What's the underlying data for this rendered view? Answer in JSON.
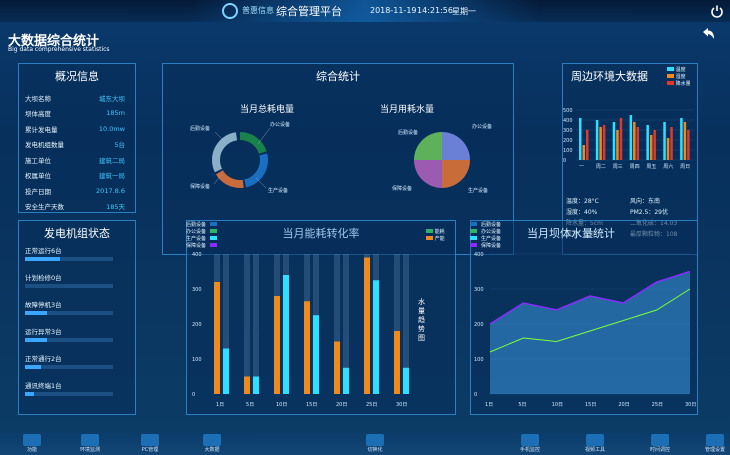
{
  "header": {
    "brand": "普惠信息",
    "platform": "综合管理平台",
    "date": "2018-11-19",
    "time": "14:21:56",
    "weekday": "星期一",
    "power_icon": "power-icon"
  },
  "page": {
    "title": "大数据综合统计",
    "subtitle": "Big data comprehensive statistics",
    "back_icon": "back-arrow-icon"
  },
  "overview": {
    "title": "概况信息",
    "rows": [
      {
        "label": "大坝名称",
        "value": "城东大坝"
      },
      {
        "label": "坝体高度",
        "value": "185m"
      },
      {
        "label": "累计发电量",
        "value": "10.0mw"
      },
      {
        "label": "发电机组数量",
        "value": "5台"
      },
      {
        "label": "施工单位",
        "value": "建筑二局"
      },
      {
        "label": "权属单位",
        "value": "建筑一局"
      },
      {
        "label": "投产日期",
        "value": "2017.8.6"
      },
      {
        "label": "安全生产天数",
        "value": "185天"
      }
    ]
  },
  "generator": {
    "title": "发电机组状态",
    "rows": [
      {
        "label": "正常运行6台",
        "fill": 0.4
      },
      {
        "label": "计划检修0台",
        "fill": 0.0
      },
      {
        "label": "故障停机3台",
        "fill": 0.25
      },
      {
        "label": "运行异常3台",
        "fill": 0.25
      },
      {
        "label": "正常通行2台",
        "fill": 0.18
      },
      {
        "label": "通讯终端1台",
        "fill": 0.1
      }
    ]
  },
  "summary": {
    "title": "综合统计",
    "donut1": {
      "title": "当月总耗电量",
      "labels": [
        "后勤设备",
        "办公设备",
        "保障设备",
        "生产设备"
      ]
    },
    "donut2": {
      "title": "当月用耗水量",
      "labels": [
        "后勤设备",
        "办公设备",
        "保障设备",
        "生产设备"
      ]
    },
    "legend": [
      "后勤设备",
      "办公设备",
      "生产设备",
      "保障设备"
    ]
  },
  "env": {
    "title": "周边环境大数据",
    "legend": [
      "温度",
      "湿度",
      "降水量"
    ],
    "days": [
      "一",
      "周二",
      "周三",
      "周四",
      "周五",
      "周六",
      "周日"
    ],
    "stats": [
      {
        "l": "温度：28°C",
        "r": "风向：东南"
      },
      {
        "l": "湿度：40%",
        "r": "PM2.5：29优"
      },
      {
        "l": "降水量：5cm",
        "r": "二氧化硫：14.03"
      },
      {
        "l": "风速：4米",
        "r": "最厚颗粒物：108"
      }
    ]
  },
  "energy": {
    "title": "当月能耗转化率",
    "legend": [
      "能耗",
      "产能"
    ],
    "side_text": "水量趋势图"
  },
  "dam": {
    "title": "当月坝体水量统计"
  },
  "colors": {
    "accent": "#3ec8ff",
    "orange": "#f08a1c",
    "cyan": "#2de0ff",
    "green": "#7bff3a",
    "purple": "#8a2cff"
  },
  "bottom_nav": [
    "功能",
    "环境监测",
    "PC管理",
    "大数据",
    "切换化",
    "手机监控",
    "视频工具",
    "时间调控",
    "管理设置"
  ],
  "chart_data": [
    {
      "type": "pie",
      "title": "当月总耗电量",
      "labels": [
        "后勤设备",
        "办公设备",
        "保障设备",
        "生产设备"
      ],
      "values": [
        20,
        30,
        25,
        25
      ]
    },
    {
      "type": "pie",
      "title": "当月用耗水量",
      "labels": [
        "后勤设备",
        "办公设备",
        "保障设备",
        "生产设备"
      ],
      "values": [
        25,
        25,
        25,
        25
      ]
    },
    {
      "type": "bar",
      "title": "周边环境大数据",
      "categories": [
        "一",
        "周二",
        "周三",
        "周四",
        "周五",
        "周六",
        "周日"
      ],
      "series": [
        {
          "name": "温度",
          "values": [
            420,
            400,
            380,
            450,
            350,
            380,
            420
          ]
        },
        {
          "name": "湿度",
          "values": [
            150,
            330,
            300,
            380,
            250,
            220,
            380
          ]
        },
        {
          "name": "降水量",
          "values": [
            300,
            350,
            420,
            330,
            300,
            330,
            300
          ]
        }
      ],
      "ylim": [
        0,
        500
      ]
    },
    {
      "type": "bar",
      "title": "当月能耗转化率",
      "categories": [
        "1日",
        "5日",
        "10日",
        "15日",
        "20日",
        "25日",
        "30日"
      ],
      "series": [
        {
          "name": "能耗",
          "values": [
            320,
            50,
            280,
            265,
            150,
            390,
            180
          ]
        },
        {
          "name": "产能",
          "values": [
            130,
            50,
            340,
            225,
            75,
            325,
            75
          ]
        }
      ],
      "ylim": [
        0,
        400
      ]
    },
    {
      "type": "area",
      "title": "当月坝体水量统计",
      "categories": [
        "1日",
        "5日",
        "10日",
        "15日",
        "20日",
        "25日",
        "30日"
      ],
      "series": [
        {
          "values": [
            200,
            260,
            240,
            280,
            260,
            320,
            350
          ]
        },
        {
          "values": [
            120,
            160,
            150,
            180,
            210,
            240,
            300
          ]
        }
      ],
      "ylim": [
        0,
        400
      ]
    }
  ]
}
